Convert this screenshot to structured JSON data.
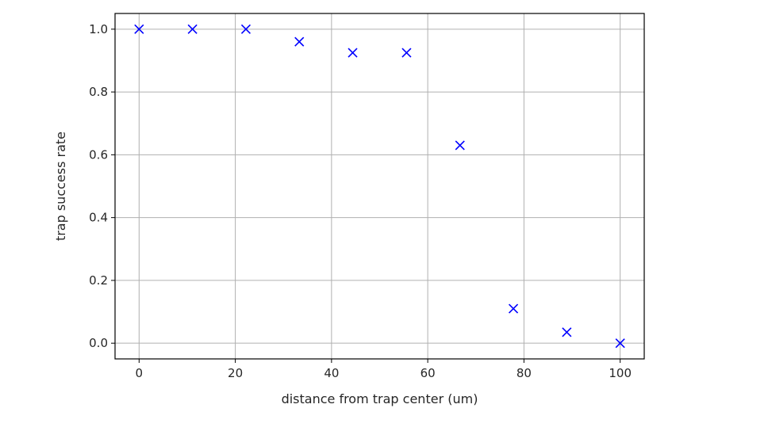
{
  "chart_data": {
    "type": "scatter",
    "title": "",
    "xlabel": "distance from trap center (um)",
    "ylabel": "trap success rate",
    "xlim": [
      -5,
      105
    ],
    "ylim": [
      -0.05,
      1.05
    ],
    "xticks": [
      0,
      20,
      40,
      60,
      80,
      100
    ],
    "yticks": [
      0.0,
      0.2,
      0.4,
      0.6,
      0.8,
      1.0
    ],
    "xtick_labels": [
      "0",
      "20",
      "40",
      "60",
      "80",
      "100"
    ],
    "ytick_labels": [
      "0.0",
      "0.2",
      "0.4",
      "0.6",
      "0.8",
      "1.0"
    ],
    "grid": true,
    "legend": false,
    "series": [
      {
        "marker": "x",
        "color": "#0000ff",
        "x": [
          0,
          11.1,
          22.2,
          33.3,
          44.4,
          55.6,
          66.7,
          77.8,
          88.9,
          100
        ],
        "y": [
          1.0,
          1.0,
          1.0,
          0.96,
          0.925,
          0.925,
          0.63,
          0.11,
          0.035,
          0.0
        ]
      }
    ]
  }
}
